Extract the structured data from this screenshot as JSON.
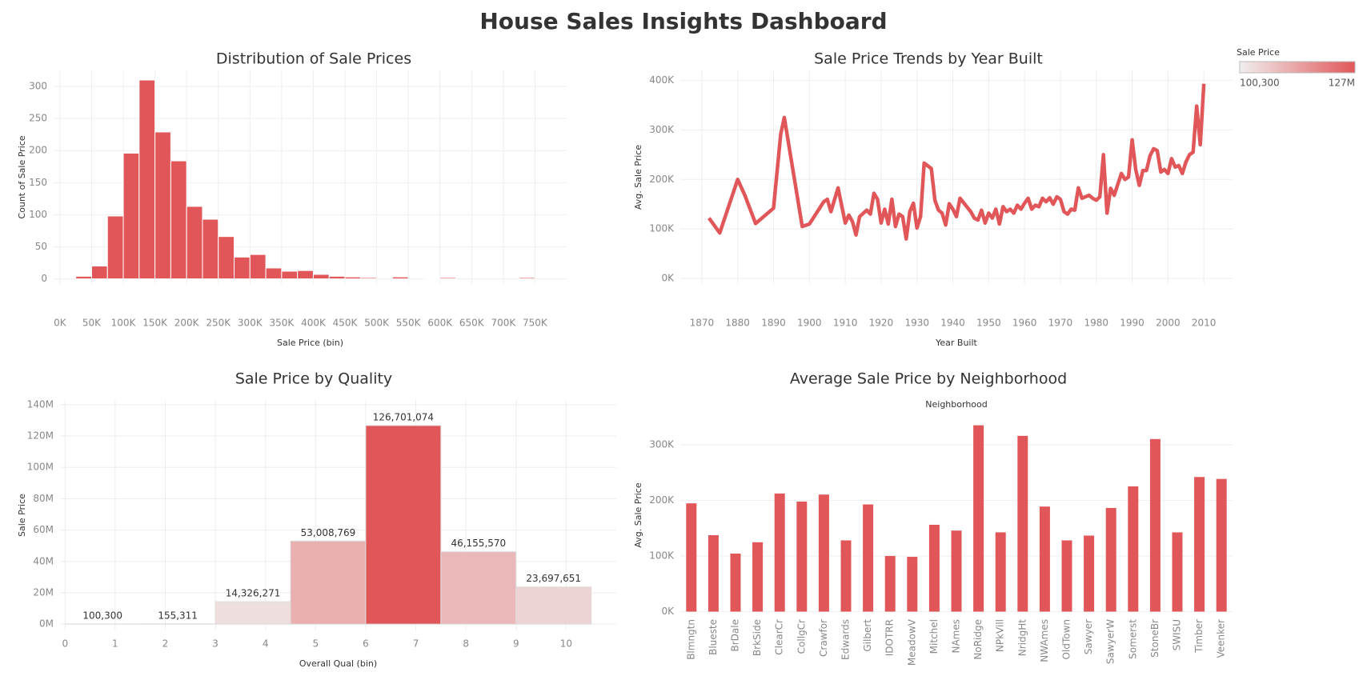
{
  "title": "House Sales Insights Dashboard",
  "color_legend": {
    "title": "Sale Price",
    "min": {
      "value": 100300,
      "label": "100,300"
    },
    "max": {
      "value": 127000000,
      "label": "127M"
    },
    "colors": [
      "#f0efef",
      "#e15759"
    ]
  },
  "chart_data": [
    {
      "type": "histogram",
      "title": "Distribution of Sale Prices",
      "x_label": "Sale Price (bin)",
      "y_label": "Count of Sale Price",
      "bins": [
        25000,
        50000,
        75000,
        100000,
        125000,
        150000,
        175000,
        200000,
        225000,
        250000,
        275000,
        300000,
        325000,
        350000,
        375000,
        400000,
        425000,
        450000,
        475000,
        500000,
        525000,
        550000,
        575000,
        600000,
        625000,
        650000,
        675000,
        700000,
        725000,
        750000
      ],
      "values": [
        4,
        20,
        98,
        196,
        310,
        229,
        184,
        113,
        93,
        66,
        34,
        38,
        17,
        12,
        13,
        7,
        4,
        3,
        2,
        0,
        3,
        0,
        1,
        2,
        0,
        0,
        0,
        0,
        2
      ],
      "color": "#e15759",
      "xlim": [
        -10000,
        800000
      ],
      "xticks": [
        {
          "value": 0,
          "label": "0K"
        },
        {
          "value": 50000,
          "label": "50K"
        },
        {
          "value": 100000,
          "label": "100K"
        },
        {
          "value": 150000,
          "label": "150K"
        },
        {
          "value": 200000,
          "label": "200K"
        },
        {
          "value": 250000,
          "label": "250K"
        },
        {
          "value": 300000,
          "label": "300K"
        },
        {
          "value": 350000,
          "label": "350K"
        },
        {
          "value": 400000,
          "label": "400K"
        },
        {
          "value": 450000,
          "label": "450K"
        },
        {
          "value": 500000,
          "label": "500K"
        },
        {
          "value": 550000,
          "label": "550K"
        },
        {
          "value": 600000,
          "label": "600K"
        },
        {
          "value": 650000,
          "label": "650K"
        },
        {
          "value": 700000,
          "label": "700K"
        },
        {
          "value": 750000,
          "label": "750K"
        }
      ],
      "ylim": [
        -8,
        325
      ],
      "yticks": [
        0,
        50,
        100,
        150,
        200,
        250,
        300
      ],
      "grid": true
    },
    {
      "type": "line",
      "title": "Sale Price Trends by Year Built",
      "x_label": "Year Built",
      "y_label": "Avg. Sale Price",
      "x": [
        1872,
        1875,
        1880,
        1882,
        1885,
        1890,
        1892,
        1893,
        1898,
        1900,
        1904,
        1905,
        1906,
        1908,
        1910,
        1911,
        1912,
        1913,
        1914,
        1916,
        1917,
        1918,
        1919,
        1920,
        1921,
        1922,
        1923,
        1924,
        1925,
        1926,
        1927,
        1928,
        1929,
        1930,
        1931,
        1932,
        1934,
        1935,
        1936,
        1937,
        1938,
        1939,
        1940,
        1941,
        1942,
        1945,
        1946,
        1947,
        1948,
        1949,
        1950,
        1951,
        1952,
        1953,
        1954,
        1955,
        1956,
        1957,
        1958,
        1959,
        1960,
        1961,
        1962,
        1963,
        1964,
        1965,
        1966,
        1967,
        1968,
        1969,
        1970,
        1971,
        1972,
        1973,
        1974,
        1975,
        1976,
        1977,
        1978,
        1979,
        1980,
        1981,
        1982,
        1983,
        1984,
        1985,
        1986,
        1987,
        1988,
        1989,
        1990,
        1991,
        1992,
        1993,
        1994,
        1995,
        1996,
        1997,
        1998,
        1999,
        2000,
        2001,
        2002,
        2003,
        2004,
        2005,
        2006,
        2007,
        2008,
        2009,
        2010
      ],
      "values": [
        122000,
        92000,
        200000,
        168000,
        111000,
        142000,
        291000,
        325000,
        105000,
        110000,
        155000,
        160000,
        135000,
        183000,
        112000,
        128000,
        115000,
        88000,
        125000,
        138000,
        130000,
        172000,
        160000,
        112000,
        140000,
        110000,
        160000,
        105000,
        130000,
        125000,
        80000,
        135000,
        152000,
        102000,
        125000,
        233000,
        222000,
        158000,
        138000,
        132000,
        108000,
        151000,
        140000,
        125000,
        162000,
        135000,
        122000,
        118000,
        138000,
        112000,
        132000,
        122000,
        140000,
        110000,
        145000,
        135000,
        140000,
        132000,
        148000,
        140000,
        152000,
        162000,
        140000,
        148000,
        145000,
        162000,
        155000,
        163000,
        150000,
        165000,
        160000,
        135000,
        130000,
        140000,
        138000,
        183000,
        162000,
        165000,
        168000,
        162000,
        158000,
        165000,
        250000,
        132000,
        182000,
        168000,
        190000,
        212000,
        200000,
        205000,
        280000,
        220000,
        188000,
        218000,
        218000,
        248000,
        262000,
        258000,
        215000,
        220000,
        212000,
        242000,
        225000,
        228000,
        212000,
        235000,
        250000,
        255000,
        348000,
        270000,
        393000
      ],
      "color": "#e15759",
      "xlim": [
        1864,
        2018
      ],
      "xticks": [
        1870,
        1880,
        1890,
        1900,
        1910,
        1920,
        1930,
        1940,
        1950,
        1960,
        1970,
        1980,
        1990,
        2000,
        2010
      ],
      "ylim": [
        -11000,
        420000
      ],
      "yticks": [
        {
          "value": 0,
          "label": "0K"
        },
        {
          "value": 100000,
          "label": "100K"
        },
        {
          "value": 200000,
          "label": "200K"
        },
        {
          "value": 300000,
          "label": "300K"
        },
        {
          "value": 400000,
          "label": "400K"
        }
      ],
      "grid": true
    },
    {
      "type": "histogram",
      "title": "Sale Price by Quality",
      "x_label": "Overall Qual (bin)",
      "y_label": "Sale Price",
      "bins": [
        0,
        1.5,
        3,
        4.5,
        6,
        7.5,
        9,
        10.5
      ],
      "values": [
        100300,
        155311,
        14326271,
        53008769,
        126701074,
        46155570,
        23697651
      ],
      "value_labels": [
        "100,300",
        "155,311",
        "14,326,271",
        "53,008,769",
        "126,701,074",
        "46,155,570",
        "23,697,651"
      ],
      "color_by_legend": true,
      "xlim": [
        -0.1,
        11
      ],
      "xticks": [
        0,
        1,
        2,
        3,
        4,
        5,
        6,
        7,
        8,
        9,
        10
      ],
      "ylim": [
        -4000000,
        143000000
      ],
      "yticks": [
        {
          "value": 0,
          "label": "0M"
        },
        {
          "value": 20000000,
          "label": "20M"
        },
        {
          "value": 40000000,
          "label": "40M"
        },
        {
          "value": 60000000,
          "label": "60M"
        },
        {
          "value": 80000000,
          "label": "80M"
        },
        {
          "value": 100000000,
          "label": "100M"
        },
        {
          "value": 120000000,
          "label": "120M"
        },
        {
          "value": 140000000,
          "label": "140M"
        }
      ],
      "grid": true
    },
    {
      "type": "bar",
      "title": "Average Sale Price by Neighborhood",
      "column_header": "Neighborhood",
      "y_label": "Avg. Sale Price",
      "categories": [
        "Blmngtn",
        "Blueste",
        "BrDale",
        "BrkSide",
        "ClearCr",
        "CollgCr",
        "Crawfor",
        "Edwards",
        "Gilbert",
        "IDOTRR",
        "MeadowV",
        "Mitchel",
        "NAmes",
        "NoRidge",
        "NPkVill",
        "NridgHt",
        "NWAmes",
        "OldTown",
        "Sawyer",
        "SawyerW",
        "Somerst",
        "StoneBr",
        "SWISU",
        "Timber",
        "Veenker"
      ],
      "values": [
        194871,
        137500,
        104494,
        124834,
        212565,
        197966,
        210625,
        128220,
        192855,
        100124,
        98576,
        156270,
        145847,
        335295,
        142694,
        316271,
        189050,
        128226,
        136793,
        186556,
        225380,
        310499,
        142592,
        242247,
        238773
      ],
      "color": "#e15759",
      "ylim": [
        -5000,
        352000
      ],
      "yticks": [
        {
          "value": 0,
          "label": "0K"
        },
        {
          "value": 100000,
          "label": "100K"
        },
        {
          "value": 200000,
          "label": "200K"
        },
        {
          "value": 300000,
          "label": "300K"
        }
      ],
      "grid": true
    }
  ]
}
